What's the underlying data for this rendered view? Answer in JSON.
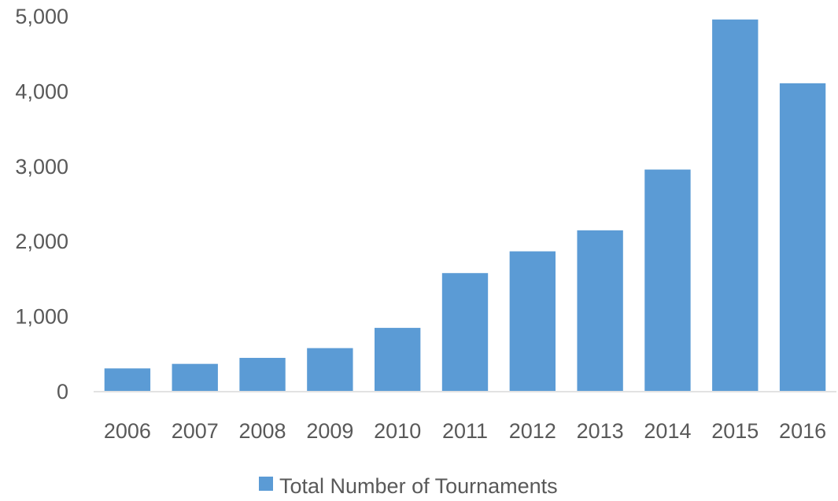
{
  "chart_data": {
    "type": "bar",
    "categories": [
      "2006",
      "2007",
      "2008",
      "2009",
      "2010",
      "2011",
      "2012",
      "2013",
      "2014",
      "2015",
      "2016"
    ],
    "series": [
      {
        "name": "Total Number of Tournaments",
        "values": [
          300,
          360,
          440,
          570,
          840,
          1570,
          1860,
          2140,
          2950,
          4950,
          4100
        ],
        "color": "#5B9BD5"
      }
    ],
    "title": "",
    "xlabel": "",
    "ylabel": "",
    "ylim": [
      0,
      5000
    ],
    "yticks": [
      "0",
      "1,000",
      "2,000",
      "3,000",
      "4,000",
      "5,000"
    ],
    "grid": false,
    "legend_position": "bottom"
  }
}
